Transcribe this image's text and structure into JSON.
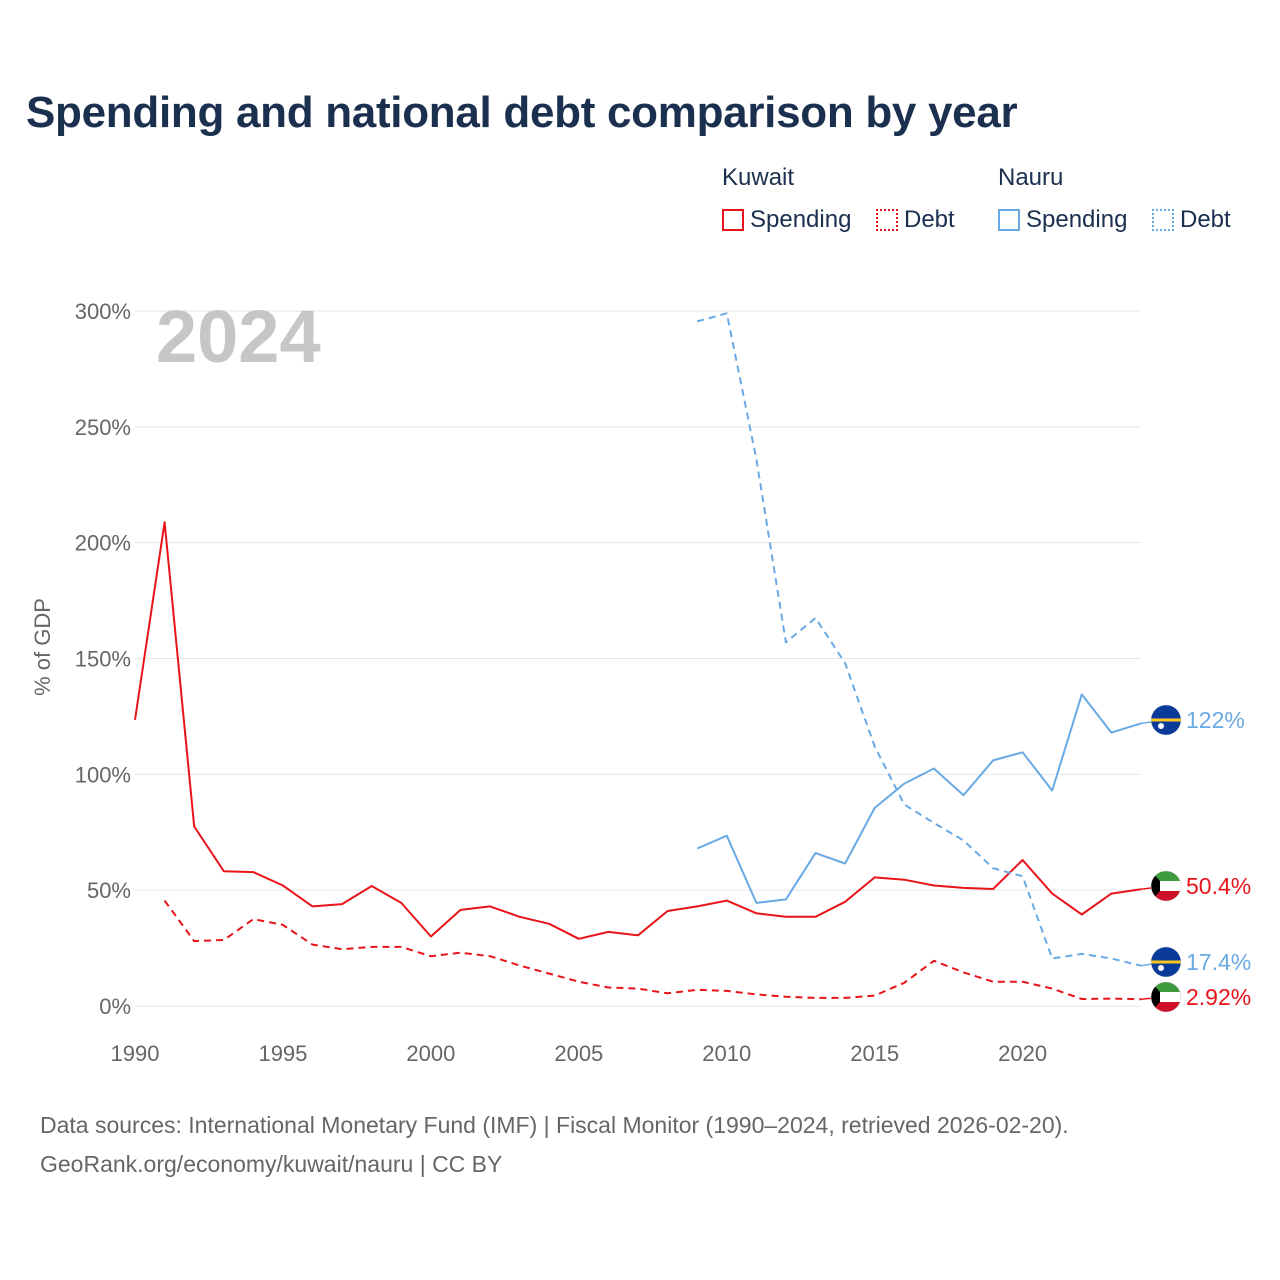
{
  "title": "Spending and national debt comparison by year",
  "legend": {
    "groups": [
      {
        "country": "Kuwait",
        "color": "#e8141a",
        "items": [
          {
            "label": "Spending",
            "style": "solid"
          },
          {
            "label": "Debt",
            "style": "dotted"
          }
        ]
      },
      {
        "country": "Nauru",
        "color": "#69a9e4",
        "items": [
          {
            "label": "Spending",
            "style": "solid"
          },
          {
            "label": "Debt",
            "style": "dotted"
          }
        ]
      }
    ]
  },
  "sources": {
    "line1": "Data sources: International Monetary Fund (IMF) | Fiscal Monitor (1990–2024, retrieved 2026-02-20).",
    "line2": "GeoRank.org/economy/kuwait/nauru | CC BY"
  },
  "chart_data": {
    "type": "line",
    "title": "Spending and national debt comparison by year",
    "ylabel": "% of GDP",
    "xlabel": "",
    "xlim": [
      1990,
      2024
    ],
    "ylim": [
      0,
      300
    ],
    "x_ticks": [
      1990,
      1995,
      2000,
      2005,
      2010,
      2015,
      2020
    ],
    "y_ticks": [
      0,
      50,
      100,
      150,
      200,
      250,
      300
    ],
    "y_tick_labels": [
      "0%",
      "50%",
      "100%",
      "150%",
      "200%",
      "250%",
      "300%"
    ],
    "grid": true,
    "year_label": "2024",
    "series": [
      {
        "name": "Kuwait Spending",
        "country": "Kuwait",
        "metric": "Spending",
        "color": "#e8141a",
        "dash": "solid",
        "end_label": "50.4%",
        "flag": "kuwait-flag",
        "x": [
          1990,
          1991,
          1992,
          1993,
          1994,
          1995,
          1996,
          1997,
          1998,
          1999,
          2000,
          2001,
          2002,
          2003,
          2004,
          2005,
          2006,
          2007,
          2008,
          2009,
          2010,
          2011,
          2012,
          2013,
          2014,
          2015,
          2016,
          2017,
          2018,
          2019,
          2020,
          2021,
          2022,
          2023,
          2024
        ],
        "values": [
          123.5,
          208.8,
          77.5,
          58.2,
          57.8,
          52,
          43,
          44,
          51.8,
          44.5,
          30,
          41.5,
          43,
          38.5,
          35.5,
          29,
          32,
          30.5,
          41,
          43,
          45.5,
          40,
          38.5,
          38.5,
          45,
          55.5,
          54.5,
          52,
          51,
          50.5,
          63,
          48.5,
          39.5,
          48.5,
          50.4
        ]
      },
      {
        "name": "Kuwait Debt",
        "country": "Kuwait",
        "metric": "Debt",
        "color": "#e8141a",
        "dash": "dashed",
        "end_label": "2.92%",
        "flag": "kuwait-flag",
        "x": [
          1991,
          1992,
          1993,
          1994,
          1995,
          1996,
          1997,
          1998,
          1999,
          2000,
          2001,
          2002,
          2003,
          2004,
          2005,
          2006,
          2007,
          2008,
          2009,
          2010,
          2011,
          2012,
          2013,
          2014,
          2015,
          2016,
          2017,
          2018,
          2019,
          2020,
          2021,
          2022,
          2023,
          2024
        ],
        "values": [
          45.5,
          28,
          28.5,
          37.5,
          35,
          26.5,
          24.5,
          25.5,
          25.5,
          21.5,
          23,
          21.5,
          17.5,
          14,
          10.5,
          8,
          7.5,
          5.5,
          7,
          6.5,
          5,
          4,
          3.5,
          3.5,
          4.5,
          10,
          19.5,
          14.5,
          10.5,
          10.5,
          7.5,
          3,
          3.2,
          2.92
        ]
      },
      {
        "name": "Nauru Spending",
        "country": "Nauru",
        "metric": "Spending",
        "color": "#69a9e4",
        "dash": "solid",
        "end_label": "122%",
        "flag": "nauru-flag",
        "x": [
          2009,
          2010,
          2011,
          2012,
          2013,
          2014,
          2015,
          2016,
          2017,
          2018,
          2019,
          2020,
          2021,
          2022,
          2023,
          2024
        ],
        "values": [
          68,
          73.5,
          44.5,
          46,
          66,
          61.5,
          85.5,
          96,
          102.5,
          91,
          106,
          109.5,
          93,
          134.5,
          118,
          122
        ]
      },
      {
        "name": "Nauru Debt",
        "country": "Nauru",
        "metric": "Debt",
        "color": "#69a9e4",
        "dash": "dashed",
        "end_label": "17.4%",
        "flag": "nauru-flag",
        "x": [
          2009,
          2010,
          2011,
          2012,
          2013,
          2014,
          2015,
          2016,
          2017,
          2018,
          2019,
          2020,
          2021,
          2022,
          2023,
          2024
        ],
        "values": [
          295.5,
          299,
          236,
          157,
          167.5,
          148,
          112,
          87,
          79,
          71.5,
          59.5,
          56,
          20.5,
          22.5,
          20.5,
          17.4
        ]
      }
    ]
  }
}
